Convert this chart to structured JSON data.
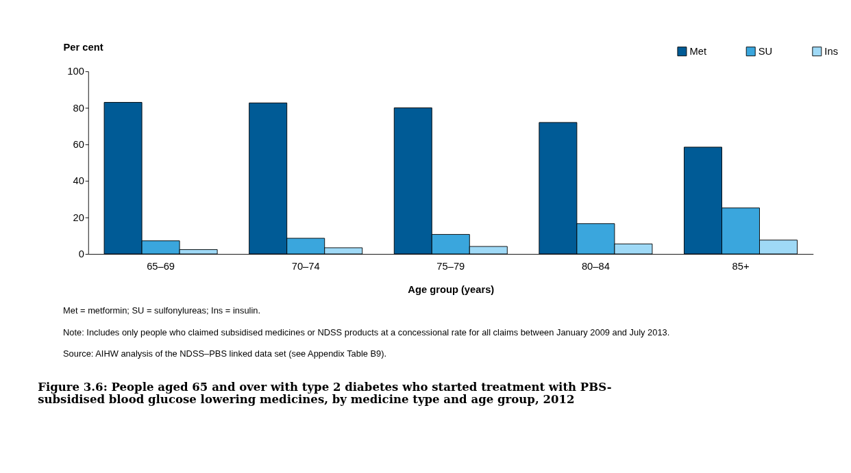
{
  "chart_data": {
    "type": "bar",
    "ylabel": "Per cent",
    "xlabel": "Age group (years)",
    "title": "Figure 3.6: People aged 65 and over with type 2 diabetes who started treatment with PBS-subsidised blood glucose lowering medicines, by medicine type and age group, 2012",
    "categories": [
      "65–69",
      "70–74",
      "75–79",
      "80–84",
      "85+"
    ],
    "series": [
      {
        "name": "Met",
        "color": "#005b96",
        "values": [
          83,
          82.7,
          80,
          72,
          58.5
        ]
      },
      {
        "name": "SU",
        "color": "#3aa6dd",
        "values": [
          7.2,
          8.6,
          10.7,
          16.6,
          25.2
        ]
      },
      {
        "name": "Ins",
        "color": "#9fd9f6",
        "values": [
          2.4,
          3.4,
          4.1,
          5.5,
          7.6
        ]
      }
    ],
    "ylim": [
      0,
      100
    ],
    "yticks": [
      0,
      20,
      40,
      60,
      80,
      100
    ],
    "grid": false,
    "legend": "top right",
    "annotations": [
      "Met = metformin; SU = sulfonylureas; Ins = insulin.",
      "Note: Includes only people who claimed subsidised medicines or NDSS products at a concessional rate for all claims between January 2009 and July 2013.",
      "Source: AIHW analysis of the NDSS–PBS linked data set (see Appendix Table B9)."
    ]
  }
}
